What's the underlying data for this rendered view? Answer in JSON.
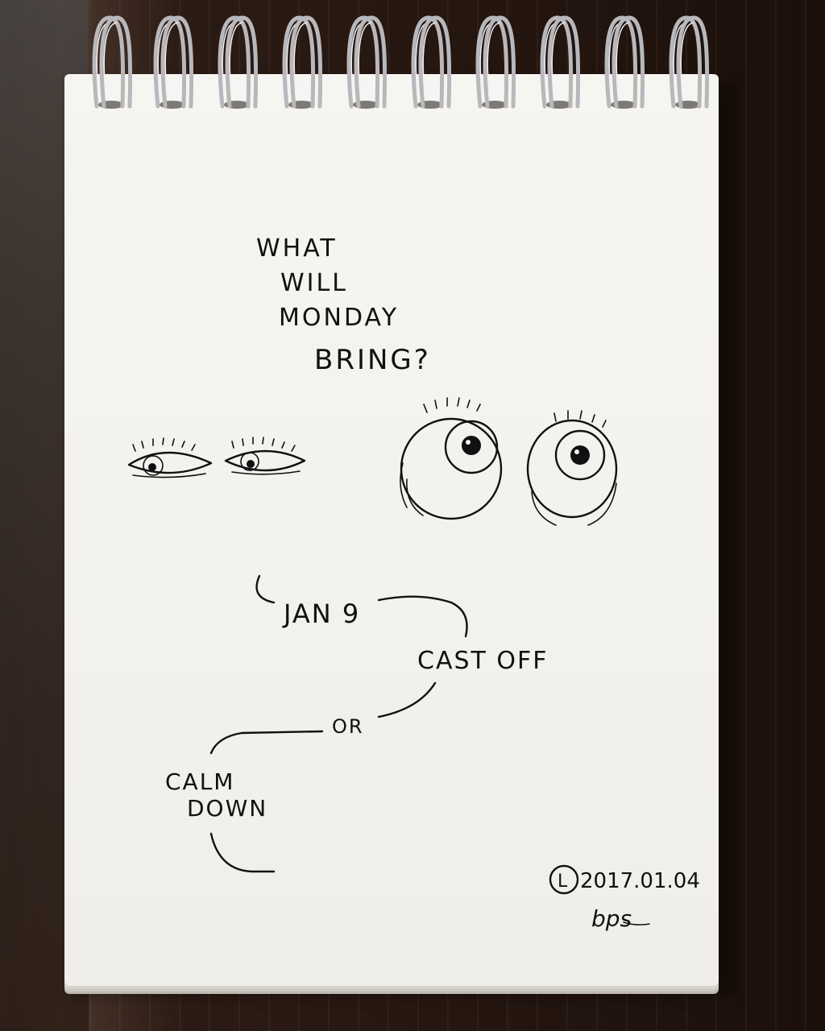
{
  "page": {
    "colors": {
      "paper": "#f4f3ef",
      "ink": "#111111",
      "table": "#2a1a12",
      "ring": "#b8b8bc"
    },
    "icons": [
      "spiral-ring-icon",
      "eyes-icon",
      "signature-icon"
    ]
  },
  "sketch": {
    "question": {
      "line1": "WHAT",
      "line2": "WILL",
      "line3": "MONDAY",
      "line4": "BRING?"
    },
    "date_label": "JAN 9",
    "option_1": "CAST OFF",
    "connector": "OR",
    "option_2_line1": "CALM",
    "option_2_line2": "DOWN",
    "date_stamp": "2017.01.04",
    "stamp_letter": "L",
    "signature": "bps"
  }
}
